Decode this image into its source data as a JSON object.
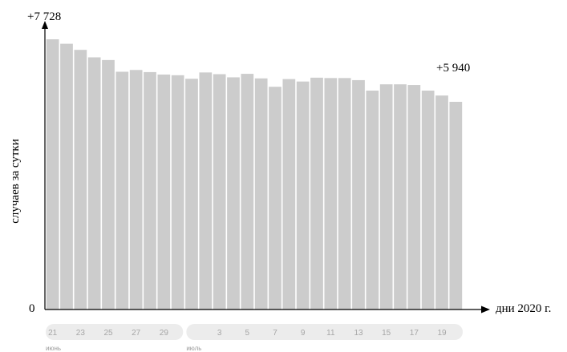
{
  "chart_data": {
    "type": "bar",
    "xlabel": "дни 2020 г.",
    "ylabel": "случаев за сутки",
    "y_origin_label": "0",
    "annotations": {
      "max_label": "+7 728",
      "last_label": "+5 940"
    },
    "ylim": [
      0,
      7728
    ],
    "grid": false,
    "categories": [
      "21",
      "22",
      "23",
      "24",
      "25",
      "26",
      "27",
      "28",
      "29",
      "30",
      "1",
      "2",
      "3",
      "4",
      "5",
      "6",
      "7",
      "8",
      "9",
      "10",
      "11",
      "12",
      "13",
      "14",
      "15",
      "16",
      "17",
      "18",
      "19",
      "20"
    ],
    "values": [
      7728,
      7600,
      7425,
      7212,
      7135,
      6800,
      6850,
      6790,
      6720,
      6700,
      6600,
      6780,
      6730,
      6640,
      6740,
      6610,
      6370,
      6590,
      6520,
      6630,
      6620,
      6620,
      6560,
      6260,
      6440,
      6440,
      6420,
      6260,
      6120,
      5940
    ],
    "tick_labels": [
      {
        "index": 0,
        "label": "21"
      },
      {
        "index": 2,
        "label": "23"
      },
      {
        "index": 4,
        "label": "25"
      },
      {
        "index": 6,
        "label": "27"
      },
      {
        "index": 8,
        "label": "29"
      },
      {
        "index": 12,
        "label": "3"
      },
      {
        "index": 14,
        "label": "5"
      },
      {
        "index": 16,
        "label": "7"
      },
      {
        "index": 18,
        "label": "9"
      },
      {
        "index": 20,
        "label": "11"
      },
      {
        "index": 22,
        "label": "13"
      },
      {
        "index": 24,
        "label": "15"
      },
      {
        "index": 26,
        "label": "17"
      },
      {
        "index": 28,
        "label": "19"
      }
    ],
    "months": [
      {
        "label": "июнь",
        "start_index": 0,
        "end_index": 9
      },
      {
        "label": "июль",
        "start_index": 10,
        "end_index": 29
      }
    ],
    "colors": {
      "bar": "#cccccc",
      "axis": "#000000",
      "month_band": "#ececec",
      "tick_text": "#a6a6a6",
      "month_text": "#9a9a9a"
    }
  }
}
